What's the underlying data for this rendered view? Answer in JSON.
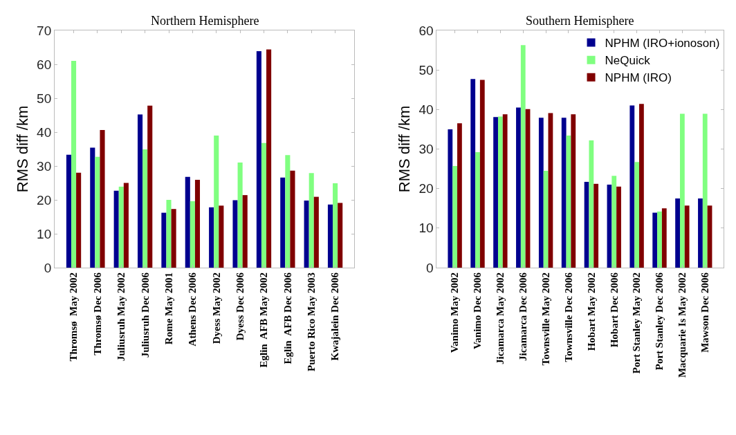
{
  "chart_data": [
    {
      "type": "bar",
      "title": "Northern Hemisphere",
      "ylabel": "RMS diff /km",
      "categories": [
        "Thromsø  May 2002",
        "Thromsø Dec 2006",
        "Juliusruh May 2002",
        "Juliusruh Dec 2006",
        "Rome May 2001",
        "Athens Dec 2006",
        "Dyess May 2002",
        "Dyess Dec 2006",
        "Eglin  AFB May 2002",
        "Eglin  AFB Dec 2006",
        "Puerto Rico May 2003",
        "Kwajalein Dec 2006"
      ],
      "series": [
        {
          "color": "#00008f",
          "values": [
            33.3,
            35.4,
            22.7,
            45.2,
            16.2,
            26.8,
            17.8,
            19.9,
            63.9,
            26.6,
            19.8,
            18.6
          ]
        },
        {
          "color": "#80ff80",
          "values": [
            61,
            32.7,
            23.9,
            34.9,
            20,
            19.6,
            39,
            31,
            36.8,
            33.2,
            27.9,
            24.9
          ]
        },
        {
          "color": "#800000",
          "values": [
            28,
            40.6,
            25,
            47.8,
            17.3,
            25.9,
            18.3,
            21.4,
            64.4,
            28.6,
            20.9,
            19.1
          ]
        }
      ],
      "ylim": [
        0,
        70
      ],
      "yticks": [
        0,
        10,
        20,
        30,
        40,
        50,
        60,
        70
      ],
      "legend": false
    },
    {
      "type": "bar",
      "title": "Southern Hemisphere",
      "ylabel": "RMS diff /km",
      "categories": [
        "Vanimo May 2002",
        "Vanimo Dec 2006",
        "Jicamarca May 2002",
        "Jicamarca Dec 2006",
        "Townsville May 2002",
        "Townsville Dec 2006",
        "Hobart May 2002",
        "Hobart Dec 2006",
        "Port Stanley May 2002",
        "Port Stanley Dec 2006",
        "Macquarie Is May 2002",
        "Mawson Dec 2006"
      ],
      "series": [
        {
          "name": "NPHM (IRO+ionoson)",
          "color": "#00008f",
          "values": [
            35,
            47.7,
            38.1,
            40.5,
            37.9,
            37.9,
            21.7,
            21,
            41,
            13.9,
            17.5,
            17.5
          ]
        },
        {
          "name": "NeQuick",
          "color": "#80ff80",
          "values": [
            25.7,
            29.2,
            38.2,
            56.3,
            24.5,
            33.4,
            32.2,
            23.2,
            26.7,
            14.2,
            38.9,
            38.9
          ]
        },
        {
          "name": "NPHM (IRO)",
          "color": "#800000",
          "values": [
            36.5,
            47.5,
            38.8,
            40.1,
            39.1,
            38.8,
            21.2,
            20.5,
            41.4,
            15,
            15.7,
            15.7
          ]
        }
      ],
      "ylim": [
        0,
        60
      ],
      "yticks": [
        0,
        10,
        20,
        30,
        40,
        50,
        60
      ],
      "legend": "top right"
    }
  ]
}
